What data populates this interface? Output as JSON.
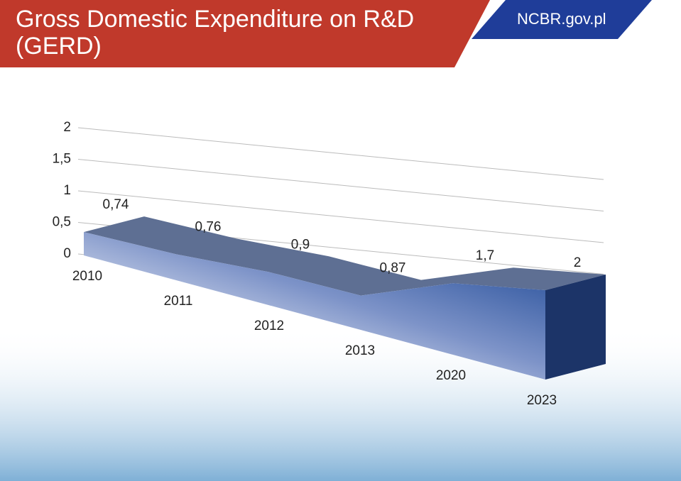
{
  "header": {
    "title": "Gross Domestic Expenditure on R&D (GERD)",
    "brand": "NCBR.gov.pl"
  },
  "chart_data": {
    "type": "area3d",
    "categories": [
      "2010",
      "2011",
      "2012",
      "2013",
      "2020",
      "2023"
    ],
    "values": [
      0.74,
      0.76,
      0.9,
      0.87,
      1.7,
      2
    ],
    "value_labels": [
      "0,74",
      "0,76",
      "0,9",
      "0,87",
      "1,7",
      "2"
    ],
    "color": "#1a4a9c",
    "ylim": [
      0,
      2
    ],
    "yticks": [
      0,
      {
        "value": 0.5,
        "label": "0,5"
      },
      1,
      {
        "value": 1.5,
        "label": "1,5"
      },
      2
    ],
    "grid": true
  }
}
